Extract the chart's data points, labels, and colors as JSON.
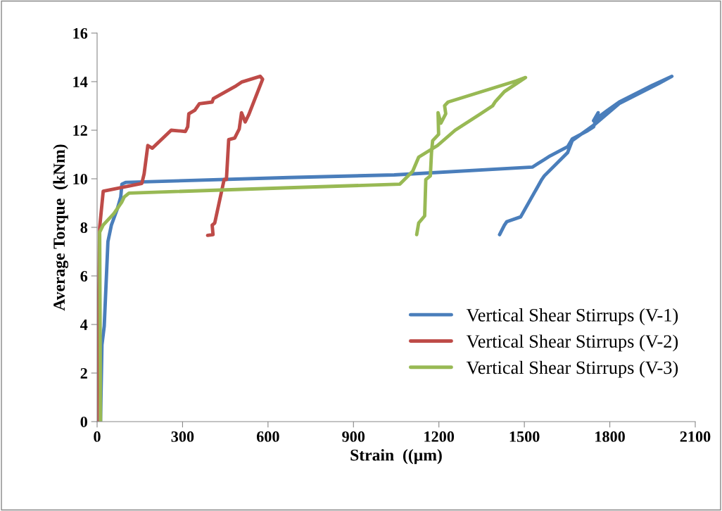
{
  "chart_data": {
    "type": "line",
    "xlabel": "Strain  ((µm)",
    "ylabel": "Average Torque  (kNm)",
    "xlim": [
      0,
      2100
    ],
    "xticks": [
      0,
      300,
      600,
      900,
      1200,
      1500,
      1800,
      2100
    ],
    "ylim": [
      0,
      16
    ],
    "yticks": [
      0,
      2,
      4,
      6,
      8,
      10,
      12,
      14,
      16
    ],
    "grid": false,
    "legend": "lower right",
    "marker": "none",
    "line_style": "solid",
    "series": [
      {
        "name": "Vertical Shear Stirrups (V-1)",
        "color": "#4a7ebb",
        "x": [
          12,
          17,
          25,
          38,
          50,
          71,
          83,
          87,
          100,
          672,
          1043,
          1528,
          1570,
          1590,
          1652,
          1668,
          1718,
          1743,
          1759,
          1743,
          1792,
          1833,
          1948,
          2018,
          1973,
          1833,
          1743,
          1668,
          1652,
          1570,
          1561,
          1487,
          1438,
          1430,
          1413
        ],
        "values": [
          0,
          3.16,
          3.93,
          7.41,
          8.09,
          8.76,
          9.25,
          9.78,
          9.85,
          10.05,
          10.16,
          10.48,
          10.79,
          10.94,
          11.32,
          11.64,
          11.95,
          12.14,
          12.72,
          12.39,
          12.82,
          13.16,
          13.84,
          14.22,
          13.93,
          13.1,
          12.2,
          11.57,
          11.08,
          10.12,
          9.97,
          8.43,
          8.23,
          8.09,
          7.7
        ]
      },
      {
        "name": "Vertical Shear Stirrups (V-2)",
        "color": "#be4b48",
        "x": [
          0,
          9,
          21.5,
          157,
          165,
          178,
          194,
          260,
          310,
          318,
          322,
          343,
          359,
          404,
          408,
          483,
          507,
          573,
          581,
          532,
          520,
          507,
          499,
          483,
          462,
          454,
          446,
          413,
          404,
          407,
          388
        ],
        "values": [
          0,
          8.0,
          9.49,
          9.81,
          10.2,
          11.37,
          11.26,
          12.0,
          11.95,
          12.14,
          12.68,
          12.82,
          13.09,
          13.16,
          13.3,
          13.79,
          13.98,
          14.22,
          14.1,
          12.63,
          12.34,
          12.72,
          12.05,
          11.68,
          11.61,
          9.97,
          9.97,
          8.18,
          8.09,
          7.7,
          7.67
        ]
      },
      {
        "name": "Vertical Shear Stirrups (V-3)",
        "color": "#98b954",
        "x": [
          12,
          9,
          21,
          59,
          87,
          95,
          112,
          672,
          1063,
          1108,
          1129,
          1195,
          1257,
          1347,
          1389,
          1397,
          1430,
          1504,
          1471,
          1232,
          1220,
          1224,
          1207,
          1197,
          1199,
          1178,
          1174,
          1170,
          1154,
          1150,
          1129,
          1122
        ],
        "values": [
          0,
          7.8,
          8.09,
          8.57,
          9.05,
          9.25,
          9.41,
          9.63,
          9.78,
          10.31,
          10.89,
          11.37,
          12.0,
          12.68,
          13.01,
          13.16,
          13.59,
          14.17,
          14.03,
          13.16,
          13.01,
          12.68,
          12.29,
          12.72,
          11.83,
          11.57,
          11.08,
          10.12,
          9.97,
          8.47,
          8.18,
          7.7
        ]
      }
    ]
  }
}
